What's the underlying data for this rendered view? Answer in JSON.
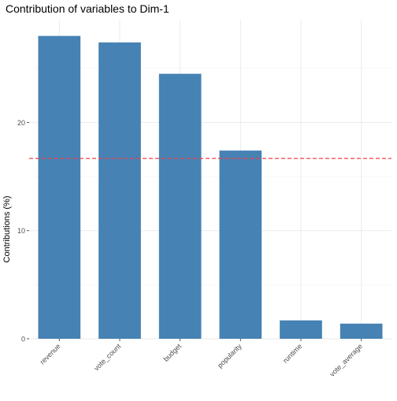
{
  "chart_data": {
    "type": "bar",
    "title": "Contribution of variables to Dim-1",
    "xlabel": "",
    "ylabel": "Contributions (%)",
    "categories": [
      "revenue",
      "vote_count",
      "budget",
      "popularity",
      "runtime",
      "vote_average"
    ],
    "values": [
      28.0,
      27.4,
      24.5,
      17.4,
      1.7,
      1.4
    ],
    "ylim": [
      0,
      29.5
    ],
    "yticks": [
      0,
      10,
      20
    ],
    "reference_line": {
      "value": 16.67,
      "style": "dashed",
      "color": "#f0404a"
    },
    "bar_color": "#4682b4",
    "grid": true,
    "legend": "none"
  }
}
